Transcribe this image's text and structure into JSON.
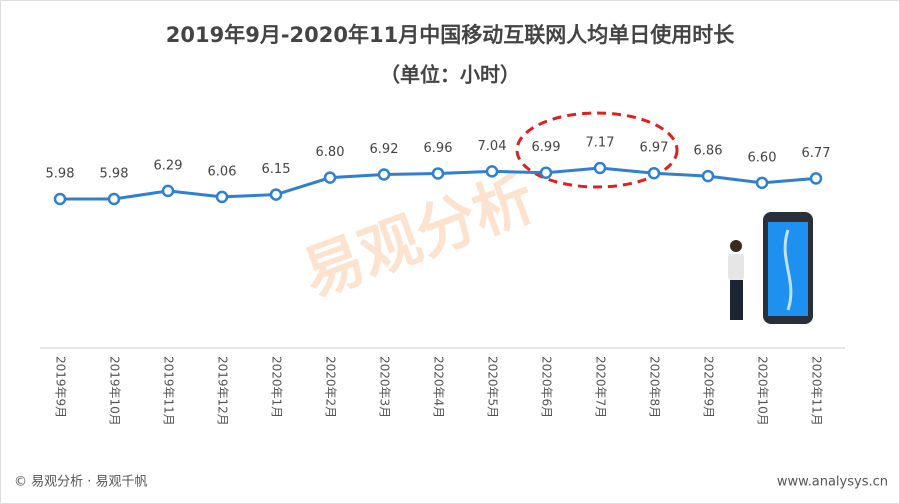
{
  "chart_data": {
    "type": "line",
    "title": "2019年9月-2020年11月中国移动互联网人均单日使用时长",
    "subtitle": "（单位：小时）",
    "categories": [
      "2019年9月",
      "2019年10月",
      "2019年11月",
      "2019年12月",
      "2020年1月",
      "2020年2月",
      "2020年3月",
      "2020年4月",
      "2020年5月",
      "2020年6月",
      "2020年7月",
      "2020年8月",
      "2020年9月",
      "2020年10月",
      "2020年11月"
    ],
    "values": [
      5.98,
      5.98,
      6.29,
      6.06,
      6.15,
      6.8,
      6.92,
      6.96,
      7.04,
      6.99,
      7.17,
      6.97,
      6.86,
      6.6,
      6.77
    ],
    "value_labels": [
      "5.98",
      "5.98",
      "6.29",
      "6.06",
      "6.15",
      "6.80",
      "6.92",
      "6.96",
      "7.04",
      "6.99",
      "7.17",
      "6.97",
      "6.86",
      "6.60",
      "6.77"
    ],
    "color": "#2f7fd2",
    "watermark": "易观分析",
    "source": "© 易观分析 · 易观千帆",
    "website": "www.analysys.cn"
  }
}
